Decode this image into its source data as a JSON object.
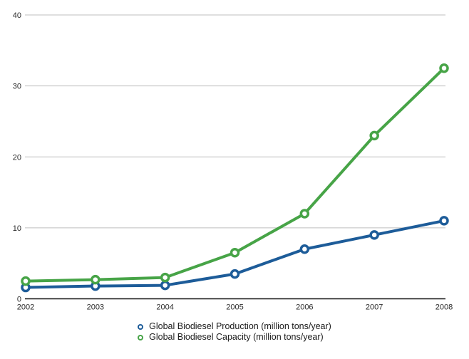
{
  "chart_data": {
    "type": "line",
    "x": [
      "2002",
      "2003",
      "2004",
      "2005",
      "2006",
      "2007",
      "2008"
    ],
    "series": [
      {
        "name": "Global Biodiesel Production (million tons/year)",
        "color": "#1d5c99",
        "values": [
          1.6,
          1.8,
          1.9,
          3.5,
          7,
          9,
          11
        ]
      },
      {
        "name": "Global Biodiesel Capacity (million tons/year)",
        "color": "#47a447",
        "values": [
          2.5,
          2.7,
          3,
          6.5,
          12,
          23,
          32.5
        ]
      }
    ],
    "title": "",
    "xlabel": "",
    "ylabel": "",
    "ylim": [
      0,
      40
    ],
    "yticks": [
      0,
      10,
      20,
      30,
      40
    ],
    "grid": true,
    "legend_position": "bottom-center",
    "marker_style": "open-circle",
    "colors": {
      "grid": "#bfbfbf",
      "axis": "#111111",
      "tick_text": "#2b2b2b",
      "background": "#ffffff"
    }
  }
}
